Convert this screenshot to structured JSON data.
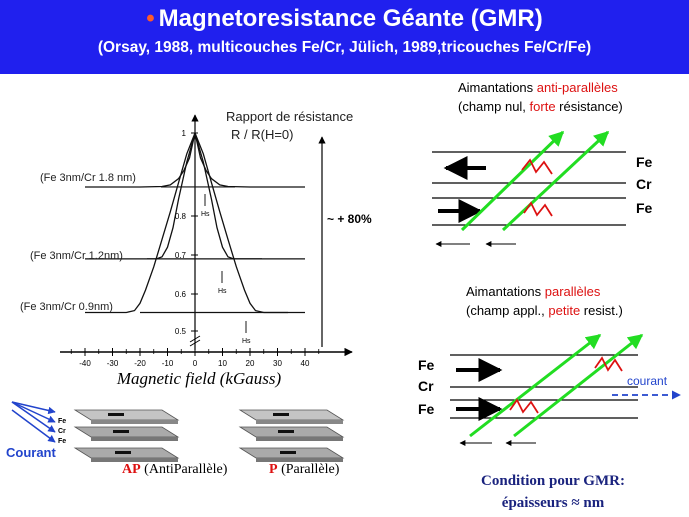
{
  "header": {
    "title_bullet": "•",
    "title": "Magnetoresistance Géante (GMR)",
    "subtitle": "(Orsay, 1988, multicouches Fe/Cr, Jülich, 1989,tricouches Fe/Cr/Fe)"
  },
  "chart_data": {
    "type": "line",
    "title": "Rapport de résistance",
    "subtitle": "R / R(H=0)",
    "xlabel": "Magnetic field (kGauss)",
    "ylabel": "",
    "x_ticks": [
      "-40",
      "-30",
      "-20",
      "-10",
      "0",
      "10",
      "20",
      "30",
      "40"
    ],
    "y_ticks": [
      "0.5",
      "0.6",
      "0.7",
      "0.8",
      "1"
    ],
    "xlim": [
      -40,
      40
    ],
    "series": [
      {
        "name": "(Fe 3nm/Cr 1.8 nm)",
        "x": [
          -40,
          -30,
          -20,
          -12,
          -9,
          -6,
          -4,
          -2,
          0,
          2,
          4,
          6,
          9,
          12,
          20,
          30,
          40
        ],
        "y": [
          0.87,
          0.87,
          0.87,
          0.871,
          0.875,
          0.89,
          0.91,
          0.94,
          1.0,
          0.94,
          0.91,
          0.89,
          0.875,
          0.871,
          0.87,
          0.87,
          0.87
        ]
      },
      {
        "name": "(Fe 3nm/Cr 1.2nm)",
        "x": [
          -40,
          -30,
          -20,
          -14,
          -12,
          -10,
          -8,
          -6,
          -3,
          0,
          3,
          6,
          8,
          10,
          12,
          14,
          20,
          30,
          40
        ],
        "y": [
          0.69,
          0.69,
          0.69,
          0.69,
          0.695,
          0.72,
          0.77,
          0.84,
          0.93,
          1.0,
          0.93,
          0.84,
          0.77,
          0.72,
          0.695,
          0.69,
          0.69,
          0.69,
          0.69
        ]
      },
      {
        "name": "(Fe 3nm/Cr 0.9nm)",
        "x": [
          -40,
          -30,
          -25,
          -22,
          -20,
          -18,
          -15,
          -12,
          -9,
          -6,
          -3,
          0,
          3,
          6,
          9,
          12,
          15,
          18,
          20,
          22,
          25,
          30,
          40
        ],
        "y": [
          0.55,
          0.55,
          0.55,
          0.555,
          0.575,
          0.61,
          0.67,
          0.74,
          0.81,
          0.88,
          0.95,
          1.0,
          0.95,
          0.88,
          0.81,
          0.74,
          0.67,
          0.61,
          0.575,
          0.555,
          0.55,
          0.55,
          0.55
        ]
      }
    ],
    "markers": [
      "Hs",
      "Hs",
      "Hs"
    ],
    "annotation": "~ + 80%"
  },
  "right_panel": {
    "anti": {
      "line1_start": "Aimantations ",
      "line1_highlight": "anti-parallèles",
      "line2_start": "(champ nul, ",
      "line2_highlight": "forte",
      "line2_end": " résistance)",
      "layers": [
        "Fe",
        "Cr",
        "Fe"
      ]
    },
    "para": {
      "line1_start": "Aimantations ",
      "line1_highlight": "parallèles",
      "line2_start": "(champ appl., ",
      "line2_highlight": "petite",
      "line2_end": " resist.)",
      "layers": [
        "Fe",
        "Cr",
        "Fe"
      ],
      "current_label": "courant"
    }
  },
  "bottom_left": {
    "courant": "Courant",
    "stack_labels": [
      "Fe",
      "Cr",
      "Fe"
    ],
    "ap_abbr": "AP",
    "ap_text": " (AntiParallèle)",
    "p_abbr": "P",
    "p_text": " (Parallèle)"
  },
  "condition": {
    "line1": "Condition pour GMR:",
    "line2": "épaisseurs ≈ nm"
  },
  "colors": {
    "header_bg": "#2020ee",
    "highlight_red": "#dd1111",
    "green_arrow": "#22dd22",
    "blue": "#2244cc",
    "navy": "#1a237e"
  }
}
